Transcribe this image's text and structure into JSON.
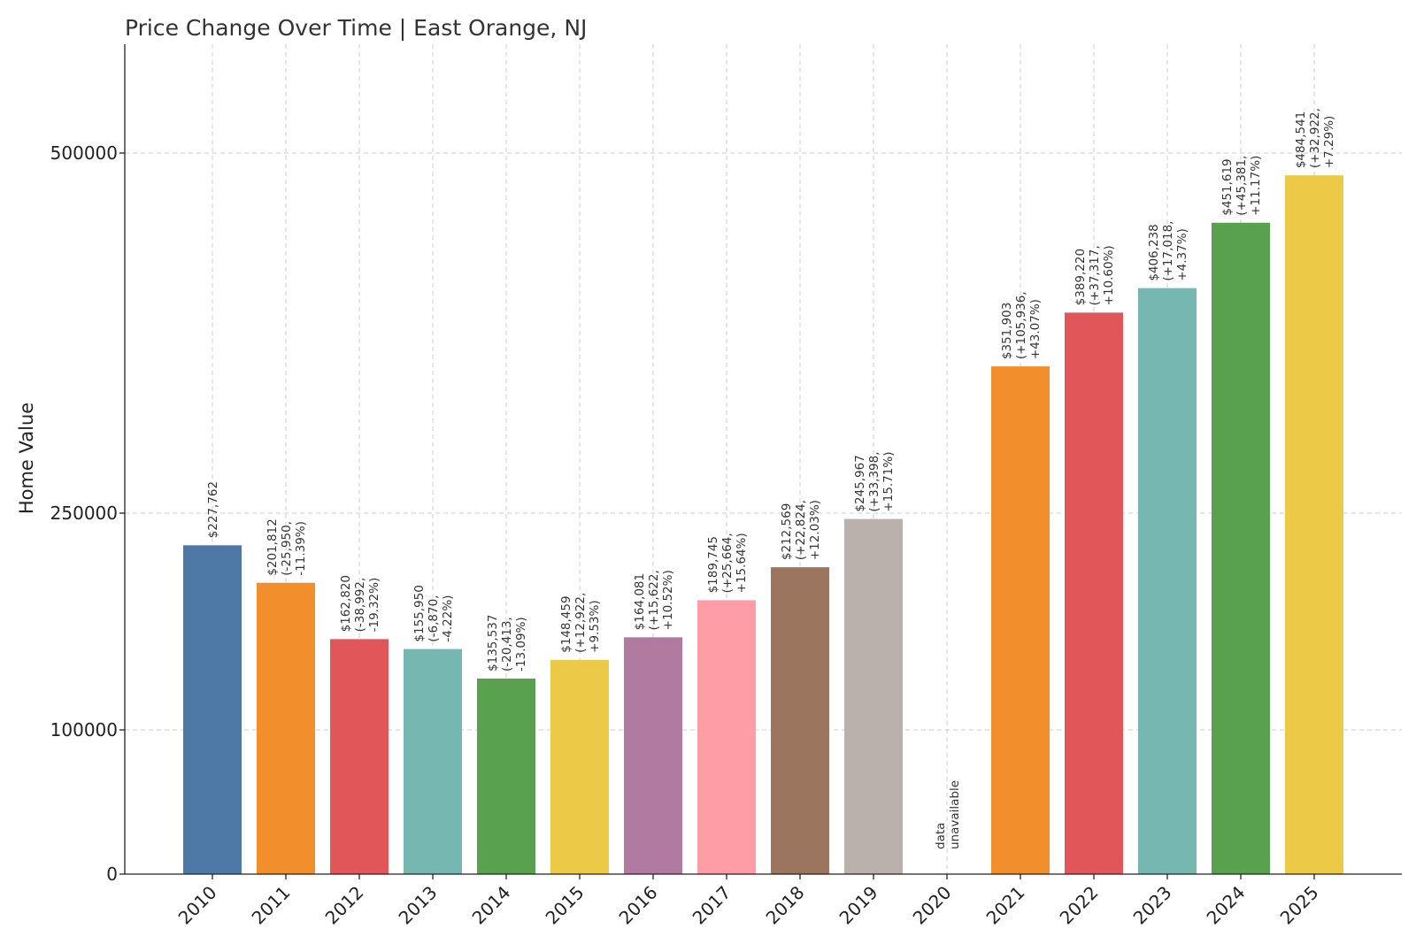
{
  "chart_data": {
    "type": "bar",
    "title": "Price Change Over Time | East Orange, NJ",
    "xlabel": "",
    "ylabel": "Home Value",
    "ylim": [
      0,
      575000
    ],
    "yscale": "piecewise",
    "yticks": [
      0,
      100000,
      250000,
      500000
    ],
    "ytick_labels": [
      "0",
      "100000",
      "250000",
      "500000"
    ],
    "grid": true,
    "categories": [
      "2010",
      "2011",
      "2012",
      "2013",
      "2014",
      "2015",
      "2016",
      "2017",
      "2018",
      "2019",
      "2020",
      "2021",
      "2022",
      "2023",
      "2024",
      "2025"
    ],
    "values": [
      227762,
      201812,
      162820,
      155950,
      135537,
      148459,
      164081,
      189745,
      212569,
      245967,
      null,
      351903,
      389220,
      406238,
      451619,
      484541
    ],
    "colors": [
      "#4e79a7",
      "#f28e2b",
      "#e15759",
      "#76b7b2",
      "#59a14f",
      "#edc948",
      "#b07aa1",
      "#ff9da7",
      "#9c755f",
      "#bab0ac",
      "#4e79a7",
      "#f28e2b",
      "#e15759",
      "#76b7b2",
      "#59a14f",
      "#edc948"
    ],
    "labels": [
      [
        "$227,762"
      ],
      [
        "$201,812",
        "(-25,950,",
        "-11.39%)"
      ],
      [
        "$162,820",
        "(-38,992,",
        "-19.32%)"
      ],
      [
        "$155,950",
        "(-6,870,",
        "-4.22%)"
      ],
      [
        "$135,537",
        "(-20,413,",
        "-13.09%)"
      ],
      [
        "$148,459",
        "(+12,922,",
        "+9.53%)"
      ],
      [
        "$164,081",
        "(+15,622,",
        "+10.52%)"
      ],
      [
        "$189,745",
        "(+25,664,",
        "+15.64%)"
      ],
      [
        "$212,569",
        "(+22,824,",
        "+12.03%)"
      ],
      [
        "$245,967",
        "(+33,398,",
        "+15.71%)"
      ],
      [
        "data",
        "unavailable"
      ],
      [
        "$351,903",
        "(+105,936,",
        "+43.07%)"
      ],
      [
        "$389,220",
        "(+37,317,",
        "+10.60%)"
      ],
      [
        "$406,238",
        "(+17,018,",
        "+4.37%)"
      ],
      [
        "$451,619",
        "(+45,381,",
        "+11.17%)"
      ],
      [
        "$484,541",
        "(+32,922,",
        "+7.29%)"
      ]
    ]
  }
}
